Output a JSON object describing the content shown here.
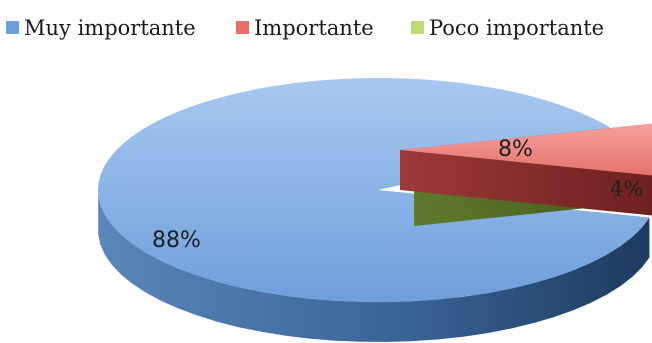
{
  "chart_data": {
    "type": "pie",
    "title": "",
    "categories": [
      "Muy importante",
      "Importante",
      "Poco importante"
    ],
    "values": [
      88,
      8,
      4
    ],
    "labels": [
      "88%",
      "8%",
      "4%"
    ],
    "colors": [
      "#4f81bd",
      "#c0504d",
      "#9bbb59"
    ],
    "legend_position": "top",
    "style": "3d-exploded"
  }
}
